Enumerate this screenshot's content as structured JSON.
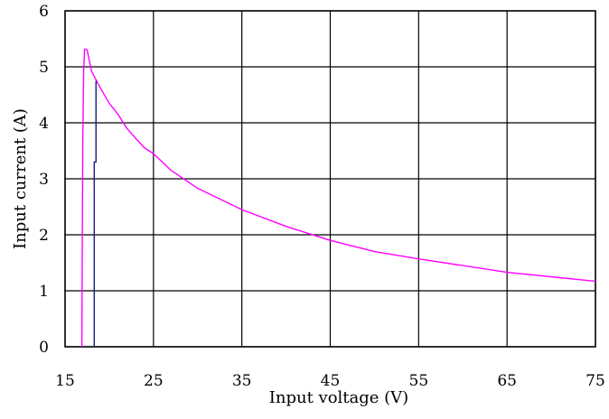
{
  "chart_data": {
    "type": "line",
    "title": "",
    "xlabel": "Input voltage (V)",
    "ylabel": "Input current (A)",
    "xlim": [
      15,
      75
    ],
    "ylim": [
      0,
      6
    ],
    "x_ticks": [
      "15",
      "25",
      "35",
      "45",
      "55",
      "65",
      "75"
    ],
    "y_ticks": [
      "0",
      "1",
      "2",
      "3",
      "4",
      "5",
      "6"
    ],
    "grid": true,
    "legend": "none",
    "series": [
      {
        "color": "#ff00ff",
        "x": [
          16.9,
          17.0,
          17.1,
          17.2,
          17.25,
          17.5,
          18.0,
          19.0,
          20.0,
          21.0,
          22.0,
          23.0,
          24.0,
          25.0,
          27.0,
          30.0,
          35.0,
          40.0,
          45.0,
          50.0,
          55.0,
          60.0,
          65.0,
          70.0,
          75.0
        ],
        "y": [
          0,
          3.6,
          4.9,
          5.3,
          5.32,
          5.3,
          4.92,
          4.62,
          4.35,
          4.15,
          3.9,
          3.72,
          3.55,
          3.45,
          3.15,
          2.83,
          2.45,
          2.15,
          1.9,
          1.7,
          1.57,
          1.45,
          1.33,
          1.25,
          1.17
        ]
      },
      {
        "color": "#1a1a80",
        "x": [
          18.3,
          18.3,
          18.5,
          18.5
        ],
        "y": [
          0,
          3.3,
          3.3,
          4.75
        ]
      }
    ]
  }
}
